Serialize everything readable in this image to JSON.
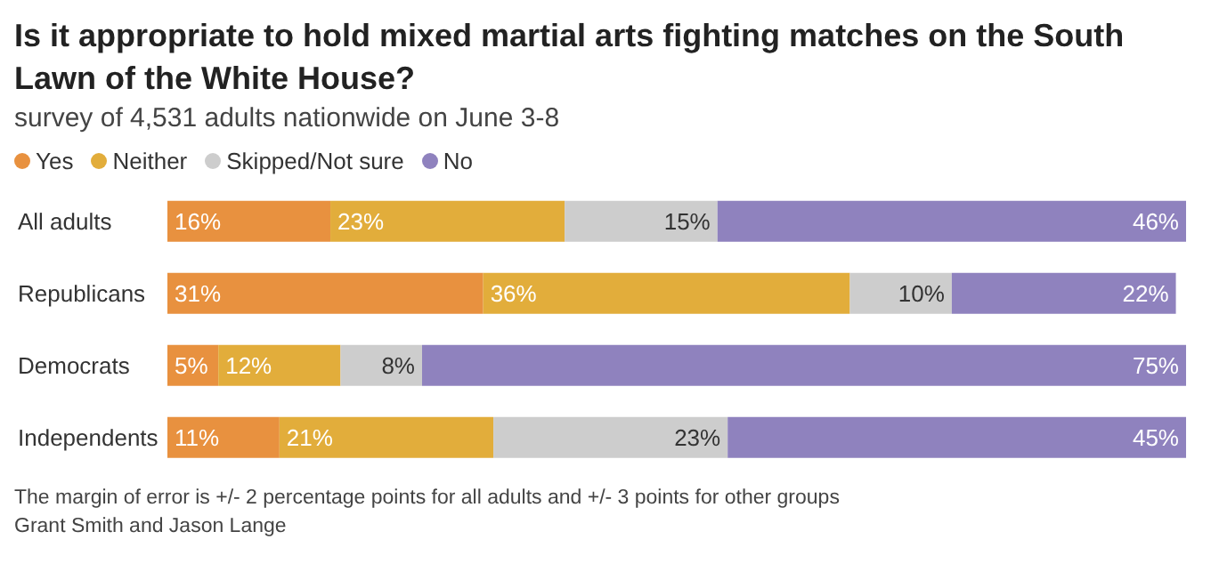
{
  "chart_data": {
    "type": "bar",
    "orientation": "horizontal",
    "stacked": true,
    "legend": "top left",
    "title": "Is it appropriate to hold mixed martial arts fighting matches on the South Lawn of the White House?",
    "subtitle": "survey of 4,531 adults nationwide on June 3-8",
    "categories": [
      "All adults",
      "Republicans",
      "Democrats",
      "Independents"
    ],
    "series": [
      {
        "name": "Yes",
        "color": "#e8913f",
        "values": [
          16,
          31,
          5,
          11
        ],
        "value_labels": [
          "16%",
          "31%",
          "5%",
          "11%"
        ]
      },
      {
        "name": "Neither",
        "color": "#e2ad3b",
        "values": [
          23,
          36,
          12,
          21
        ],
        "value_labels": [
          "23%",
          "36%",
          "12%",
          "21%"
        ]
      },
      {
        "name": "Skipped/Not sure",
        "color": "#cdcdcd",
        "values": [
          15,
          10,
          8,
          23
        ],
        "value_labels": [
          "15%",
          "10%",
          "8%",
          "23%"
        ]
      },
      {
        "name": "No",
        "color": "#8f82be",
        "values": [
          46,
          22,
          75,
          45
        ],
        "value_labels": [
          "46%",
          "22%",
          "75%",
          "45%"
        ]
      }
    ],
    "annotations": [
      "The margin of error is +/- 2 percentage points for all adults and +/- 3 points for other groups",
      "Grant Smith and Jason Lange"
    ]
  }
}
